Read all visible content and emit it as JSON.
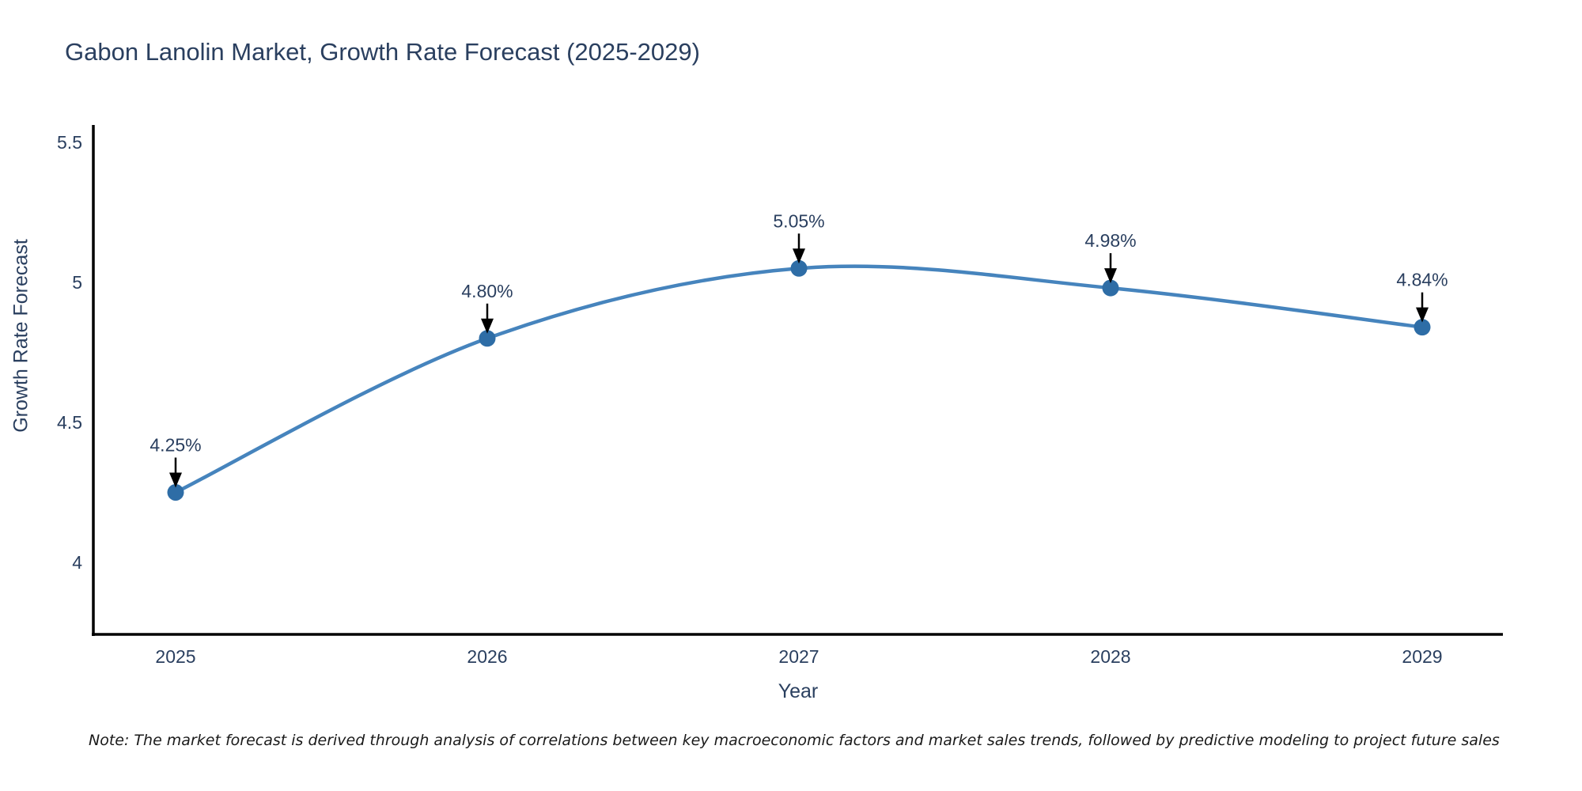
{
  "title": "Gabon Lanolin Market, Growth Rate Forecast (2025-2029)",
  "note": "Note: The market forecast is derived through analysis of correlations between key macroeconomic factors and market sales trends, followed by predictive modeling to project future sales",
  "colors": {
    "line": "#4684bd",
    "marker": "#2e6da6",
    "axis": "#000000",
    "arrow": "#000000",
    "text": "#2a3f5f",
    "note_text": "#1a1a1a",
    "background": "#ffffff"
  },
  "chart_data": {
    "type": "line",
    "line_shape": "spline",
    "title": "Gabon Lanolin Market, Growth Rate Forecast (2025-2029)",
    "xlabel": "Year",
    "ylabel": "Growth Rate Forecast",
    "categories": [
      "2025",
      "2026",
      "2027",
      "2028",
      "2029"
    ],
    "values": [
      4.25,
      4.8,
      5.05,
      4.98,
      4.84
    ],
    "point_labels": [
      "4.25%",
      "4.80%",
      "5.05%",
      "4.98%",
      "4.84%"
    ],
    "ytick_values": [
      4,
      4.5,
      5,
      5.5
    ],
    "ytick_labels": [
      "4",
      "4.5",
      "5",
      "5.5"
    ],
    "ylim": [
      3.74,
      5.6
    ],
    "grid": false,
    "legend": "none",
    "annotations_have_arrows": true
  }
}
